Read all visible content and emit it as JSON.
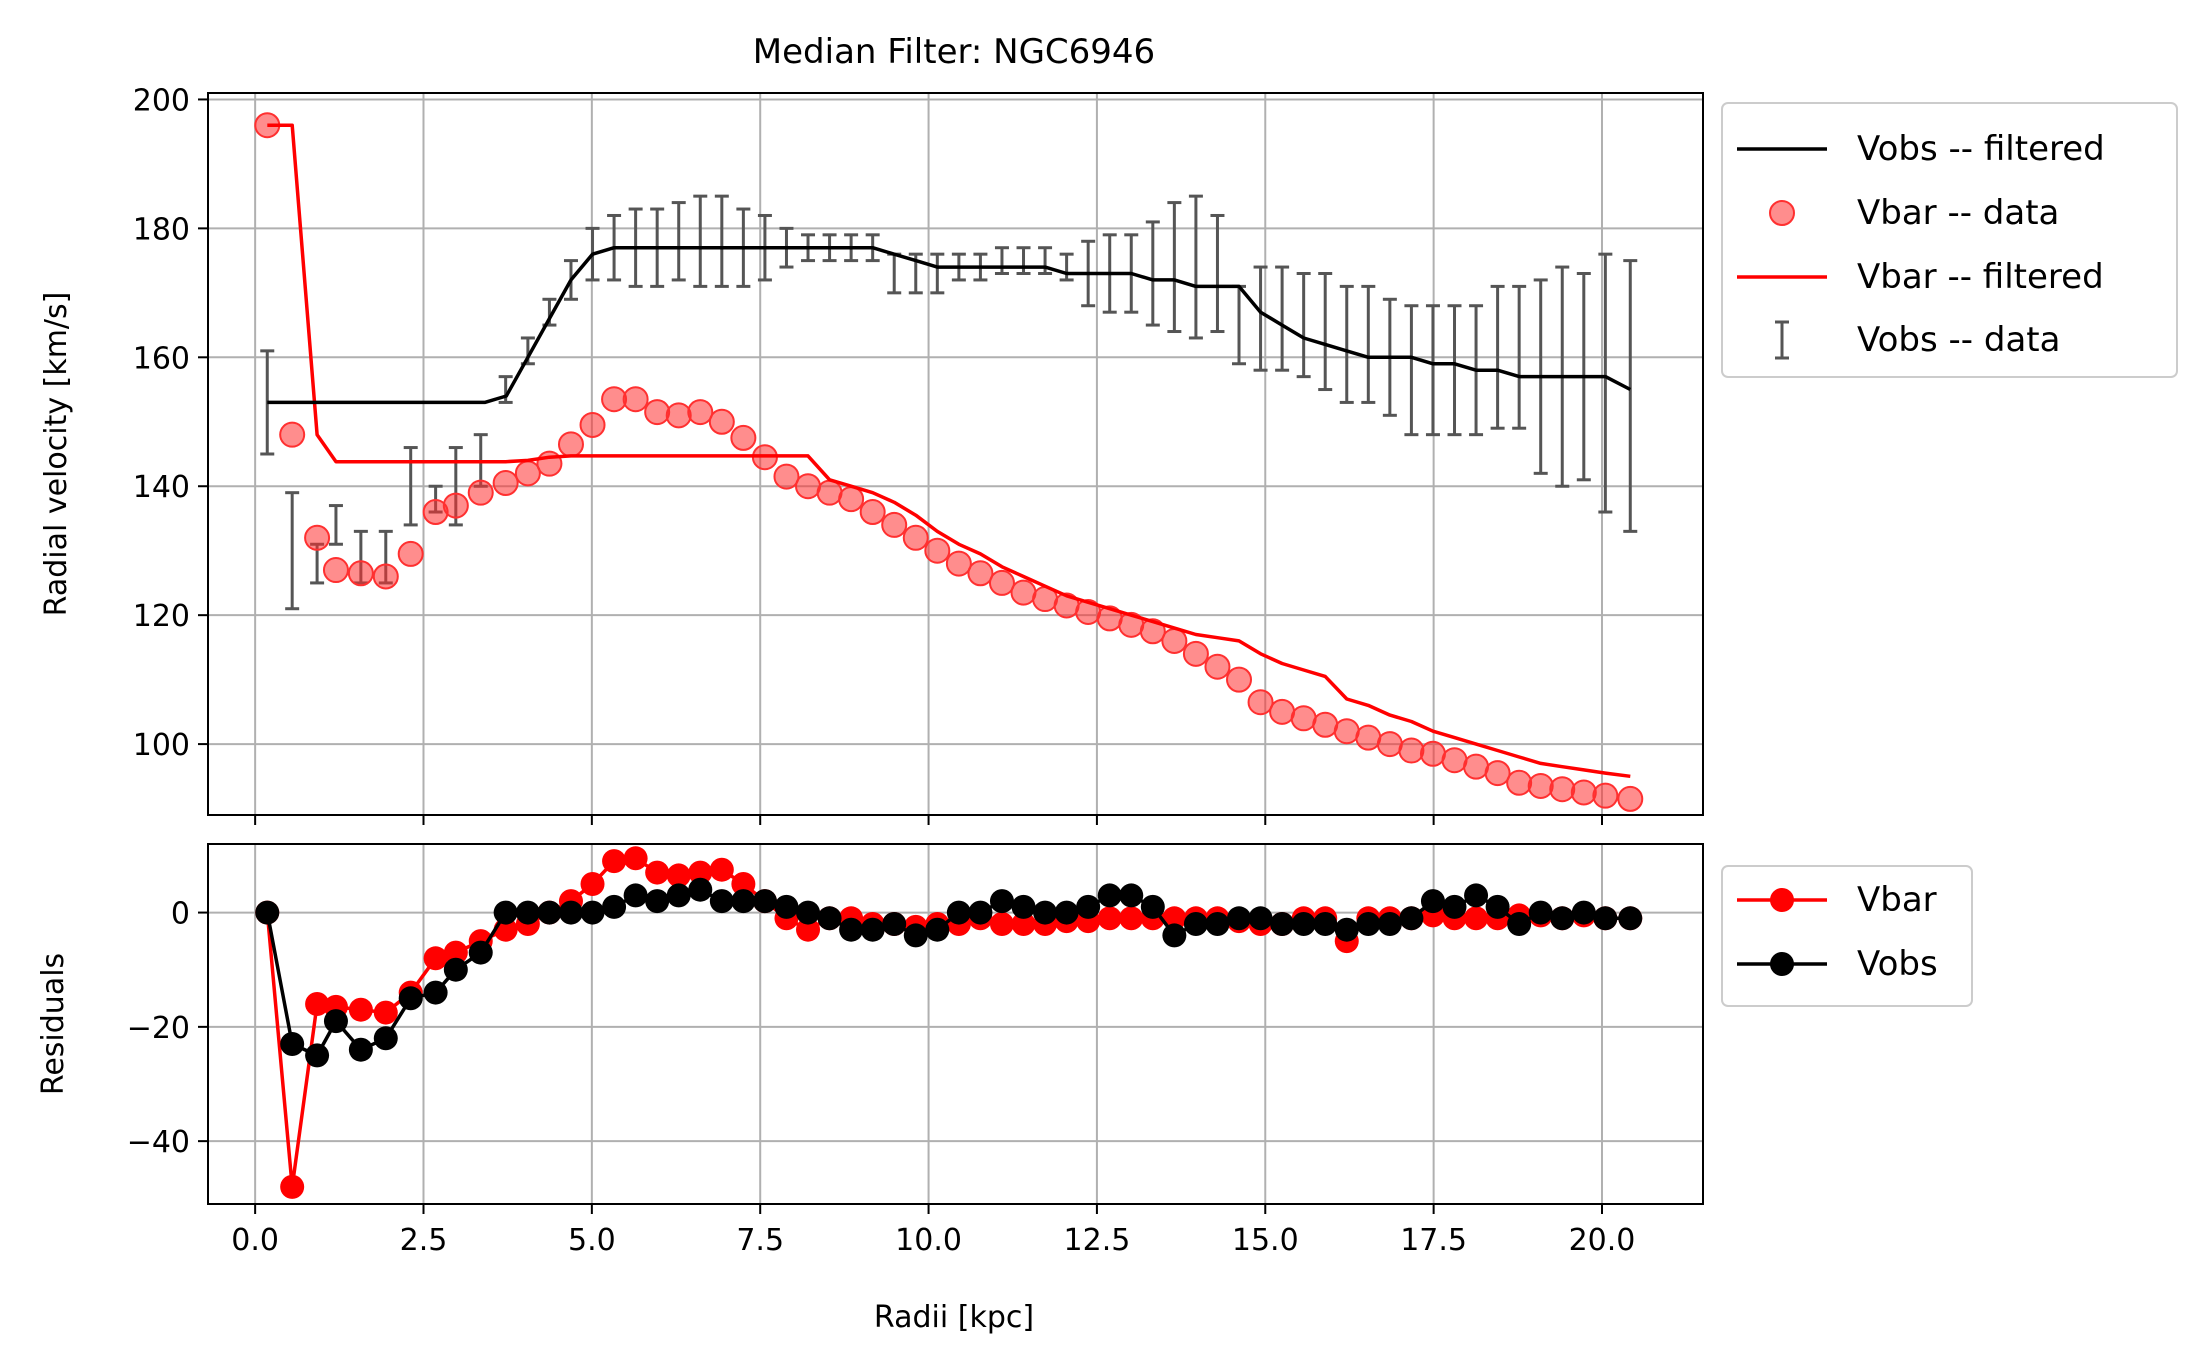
{
  "chart_data": [
    {
      "type": "line",
      "title": "Median Filter: NGC6946",
      "xlabel": "",
      "ylabel": "Radial velocity [km/s]",
      "xlim": [
        -0.7,
        21.5
      ],
      "ylim": [
        89,
        201
      ],
      "x_ticks": [
        0.0,
        2.5,
        5.0,
        7.5,
        10.0,
        12.5,
        15.0,
        17.5,
        20.0
      ],
      "y_ticks": [
        100,
        120,
        140,
        160,
        180,
        200
      ],
      "y_tick_labels": [
        "100",
        "120",
        "140",
        "160",
        "180",
        "200"
      ],
      "grid": true,
      "legend_position": "outside-right-top",
      "legend": [
        "Vobs -- filtered",
        "Vbar -- data",
        "Vbar -- filtered",
        "Vobs -- data"
      ],
      "series": [
        {
          "name": "Vobs -- filtered",
          "kind": "line",
          "color": "#000000",
          "x": [
            0.18,
            0.55,
            0.92,
            1.29,
            1.66,
            2.03,
            2.4,
            2.77,
            3.14,
            3.41,
            3.73,
            4.05,
            4.37,
            4.69,
            5.01,
            5.33,
            5.65,
            5.97,
            6.29,
            6.61,
            6.93,
            7.25,
            7.57,
            7.89,
            8.21,
            8.53,
            8.85,
            9.17,
            9.49,
            9.81,
            10.13,
            10.45,
            10.77,
            11.09,
            11.41,
            11.73,
            12.05,
            12.37,
            12.69,
            13.01,
            13.33,
            13.65,
            13.97,
            14.29,
            14.61,
            14.93,
            15.25,
            15.57,
            15.89,
            16.21,
            16.53,
            16.85,
            17.17,
            17.49,
            17.81,
            18.13,
            18.45,
            18.77,
            19.09,
            19.41,
            19.73,
            20.05,
            20.42
          ],
          "y": [
            153,
            153,
            153,
            153,
            153,
            153,
            153,
            153,
            153,
            153,
            154,
            160,
            166,
            172,
            176,
            177,
            177,
            177,
            177,
            177,
            177,
            177,
            177,
            177,
            177,
            177,
            177,
            177,
            176,
            175,
            174,
            174,
            174,
            174,
            174,
            174,
            173,
            173,
            173,
            173,
            172,
            172,
            171,
            171,
            171,
            167,
            165,
            163,
            162,
            161,
            160,
            160,
            160,
            159,
            159,
            158,
            158,
            157,
            157,
            157,
            157,
            157,
            155
          ]
        },
        {
          "name": "Vbar -- data",
          "kind": "scatter",
          "color": "#ff3030",
          "x": [
            0.18,
            0.55,
            0.92,
            1.2,
            1.57,
            1.94,
            2.31,
            2.68,
            2.98,
            3.35,
            3.72,
            4.05,
            4.37,
            4.69,
            5.01,
            5.33,
            5.65,
            5.97,
            6.29,
            6.61,
            6.93,
            7.25,
            7.57,
            7.89,
            8.21,
            8.53,
            8.85,
            9.17,
            9.49,
            9.81,
            10.13,
            10.45,
            10.77,
            11.09,
            11.41,
            11.73,
            12.05,
            12.37,
            12.69,
            13.01,
            13.33,
            13.65,
            13.97,
            14.29,
            14.61,
            14.93,
            15.25,
            15.57,
            15.89,
            16.21,
            16.53,
            16.85,
            17.17,
            17.49,
            17.81,
            18.13,
            18.45,
            18.77,
            19.09,
            19.41,
            19.73,
            20.05,
            20.42
          ],
          "y": [
            196,
            148,
            132,
            127,
            126.5,
            126,
            129.5,
            136,
            137,
            139,
            140.5,
            142,
            143.5,
            146.5,
            149.5,
            153.5,
            153.5,
            151.5,
            151,
            151.5,
            150,
            147.5,
            144.5,
            141.5,
            140,
            139,
            138,
            136,
            134,
            132,
            130,
            128,
            126.5,
            125,
            123.5,
            122.5,
            121.5,
            120.5,
            119.5,
            118.5,
            117.5,
            116,
            114,
            112,
            110,
            106.5,
            105,
            104,
            103,
            102,
            101,
            100,
            99,
            98.5,
            97.5,
            96.5,
            95.5,
            94,
            93.5,
            93,
            92.5,
            92,
            91.5
          ]
        },
        {
          "name": "Vbar -- filtered",
          "kind": "line",
          "color": "#ff0000",
          "x": [
            0.18,
            0.55,
            0.92,
            1.2,
            1.57,
            1.94,
            2.31,
            2.68,
            2.98,
            3.35,
            3.72,
            4.05,
            4.37,
            4.69,
            5.01,
            5.33,
            5.65,
            5.97,
            6.29,
            6.61,
            6.93,
            7.25,
            7.57,
            7.89,
            8.21,
            8.53,
            8.85,
            9.17,
            9.49,
            9.81,
            10.13,
            10.45,
            10.77,
            11.09,
            11.41,
            11.73,
            12.05,
            12.37,
            12.69,
            13.01,
            13.33,
            13.65,
            13.97,
            14.29,
            14.61,
            14.93,
            15.25,
            15.57,
            15.89,
            16.21,
            16.53,
            16.85,
            17.17,
            17.49,
            17.81,
            18.13,
            18.45,
            18.77,
            19.09,
            19.41,
            19.73,
            20.05,
            20.42
          ],
          "y": [
            196,
            196,
            148,
            143.8,
            143.8,
            143.8,
            143.8,
            143.8,
            143.8,
            143.8,
            143.8,
            144,
            144.5,
            144.7,
            144.7,
            144.7,
            144.7,
            144.7,
            144.7,
            144.7,
            144.7,
            144.7,
            144.7,
            144.7,
            144.7,
            141,
            140,
            139,
            137.5,
            135.5,
            133,
            131,
            129.5,
            127.5,
            126,
            124.5,
            123,
            122,
            121,
            120,
            119,
            118,
            117,
            116.5,
            116,
            114,
            112.5,
            111.5,
            110.5,
            107,
            106,
            104.5,
            103.5,
            102,
            101,
            100,
            99,
            98,
            97,
            96.5,
            96,
            95.5,
            95
          ]
        },
        {
          "name": "Vobs -- data",
          "kind": "errorbar",
          "color": "#555555",
          "x": [
            0.18,
            0.55,
            0.92,
            1.2,
            1.57,
            1.94,
            2.31,
            2.68,
            2.98,
            3.35,
            3.72,
            4.05,
            4.37,
            4.69,
            5.01,
            5.33,
            5.65,
            5.97,
            6.29,
            6.61,
            6.93,
            7.25,
            7.57,
            7.89,
            8.21,
            8.53,
            8.85,
            9.17,
            9.49,
            9.81,
            10.13,
            10.45,
            10.77,
            11.09,
            11.41,
            11.73,
            12.05,
            12.37,
            12.69,
            13.01,
            13.33,
            13.65,
            13.97,
            14.29,
            14.61,
            14.93,
            15.25,
            15.57,
            15.89,
            16.21,
            16.53,
            16.85,
            17.17,
            17.49,
            17.81,
            18.13,
            18.45,
            18.77,
            19.09,
            19.41,
            19.73,
            20.05,
            20.42
          ],
          "y": [
            153,
            130,
            128,
            134,
            129,
            129,
            140,
            138,
            140,
            144,
            155,
            161,
            167,
            172,
            176,
            177,
            177,
            177,
            178,
            178,
            178,
            177,
            177,
            177,
            177,
            177,
            177,
            177,
            173,
            173,
            173,
            174,
            174,
            175,
            175,
            175,
            174,
            173,
            173,
            173,
            173,
            174,
            174,
            173,
            165,
            166,
            166,
            165,
            164,
            162,
            162,
            160,
            158,
            158,
            158,
            158,
            160,
            160,
            157,
            157,
            157,
            156,
            154
          ],
          "err": [
            8,
            9,
            3,
            3,
            4,
            4,
            6,
            2,
            6,
            4,
            2,
            2,
            2,
            3,
            4,
            5,
            6,
            6,
            6,
            7,
            7,
            6,
            5,
            3,
            2,
            2,
            2,
            2,
            3,
            3,
            3,
            2,
            2,
            2,
            2,
            2,
            2,
            5,
            6,
            6,
            8,
            10,
            11,
            9,
            6,
            8,
            8,
            8,
            9,
            9,
            9,
            9,
            10,
            10,
            10,
            10,
            11,
            11,
            15,
            17,
            16,
            20,
            21
          ]
        }
      ]
    },
    {
      "type": "line",
      "title": "",
      "xlabel": "Radii [kpc]",
      "ylabel": "Residuals",
      "xlim": [
        -0.7,
        21.5
      ],
      "ylim": [
        -51,
        12
      ],
      "x_ticks": [
        0.0,
        2.5,
        5.0,
        7.5,
        10.0,
        12.5,
        15.0,
        17.5,
        20.0
      ],
      "x_tick_labels": [
        "0.0",
        "2.5",
        "5.0",
        "7.5",
        "10.0",
        "12.5",
        "15.0",
        "17.5",
        "20.0"
      ],
      "y_ticks": [
        -40,
        -20,
        0
      ],
      "y_tick_labels": [
        "−40",
        "−20",
        "0"
      ],
      "grid": true,
      "legend_position": "outside-right-top",
      "legend": [
        "Vbar",
        "Vobs"
      ],
      "series": [
        {
          "name": "Vbar",
          "kind": "line+markers",
          "color": "#ff0000",
          "x": [
            0.18,
            0.55,
            0.92,
            1.2,
            1.57,
            1.94,
            2.31,
            2.68,
            2.98,
            3.35,
            3.72,
            4.05,
            4.37,
            4.69,
            5.01,
            5.33,
            5.65,
            5.97,
            6.29,
            6.61,
            6.93,
            7.25,
            7.57,
            7.89,
            8.21,
            8.53,
            8.85,
            9.17,
            9.49,
            9.81,
            10.13,
            10.45,
            10.77,
            11.09,
            11.41,
            11.73,
            12.05,
            12.37,
            12.69,
            13.01,
            13.33,
            13.65,
            13.97,
            14.29,
            14.61,
            14.93,
            15.25,
            15.57,
            15.89,
            16.21,
            16.53,
            16.85,
            17.17,
            17.49,
            17.81,
            18.13,
            18.45,
            18.77,
            19.09,
            19.41,
            19.73,
            20.05,
            20.42
          ],
          "y": [
            0,
            -48,
            -16,
            -16.5,
            -17,
            -17.5,
            -14,
            -8,
            -7,
            -5,
            -3,
            -2,
            0,
            2,
            5,
            9,
            9.5,
            7,
            6.5,
            7,
            7.5,
            5,
            2,
            -1,
            -3,
            -1,
            -1,
            -2,
            -2,
            -2.5,
            -2,
            -2,
            -1,
            -2,
            -2,
            -2,
            -1.5,
            -1.5,
            -1,
            -1,
            -1,
            -1,
            -1,
            -1,
            -1.5,
            -2,
            -2,
            -1,
            -1,
            -5,
            -1,
            -1,
            -1,
            -0.5,
            -1,
            -1,
            -1,
            -0.5,
            -0.5,
            -1,
            -0.5,
            -1,
            -1
          ]
        },
        {
          "name": "Vobs",
          "kind": "line+markers",
          "color": "#000000",
          "x": [
            0.18,
            0.55,
            0.92,
            1.2,
            1.57,
            1.94,
            2.31,
            2.68,
            2.98,
            3.35,
            3.72,
            4.05,
            4.37,
            4.69,
            5.01,
            5.33,
            5.65,
            5.97,
            6.29,
            6.61,
            6.93,
            7.25,
            7.57,
            7.89,
            8.21,
            8.53,
            8.85,
            9.17,
            9.49,
            9.81,
            10.13,
            10.45,
            10.77,
            11.09,
            11.41,
            11.73,
            12.05,
            12.37,
            12.69,
            13.01,
            13.33,
            13.65,
            13.97,
            14.29,
            14.61,
            14.93,
            15.25,
            15.57,
            15.89,
            16.21,
            16.53,
            16.85,
            17.17,
            17.49,
            17.81,
            18.13,
            18.45,
            18.77,
            19.09,
            19.41,
            19.73,
            20.05,
            20.42
          ],
          "y": [
            0,
            -23,
            -25,
            -19,
            -24,
            -22,
            -15,
            -14,
            -10,
            -7,
            0,
            0,
            0,
            0,
            0,
            1,
            3,
            2,
            3,
            4,
            2,
            2,
            2,
            1,
            0,
            -1,
            -3,
            -3,
            -2,
            -4,
            -3,
            0,
            0,
            2,
            1,
            0,
            0,
            1,
            3,
            3,
            1,
            -4,
            -2,
            -2,
            -1,
            -1,
            -2,
            -2,
            -2,
            -3,
            -2,
            -2,
            -1,
            2,
            1,
            3,
            1,
            -2,
            0,
            -1,
            0,
            -1,
            -1
          ]
        }
      ]
    }
  ]
}
